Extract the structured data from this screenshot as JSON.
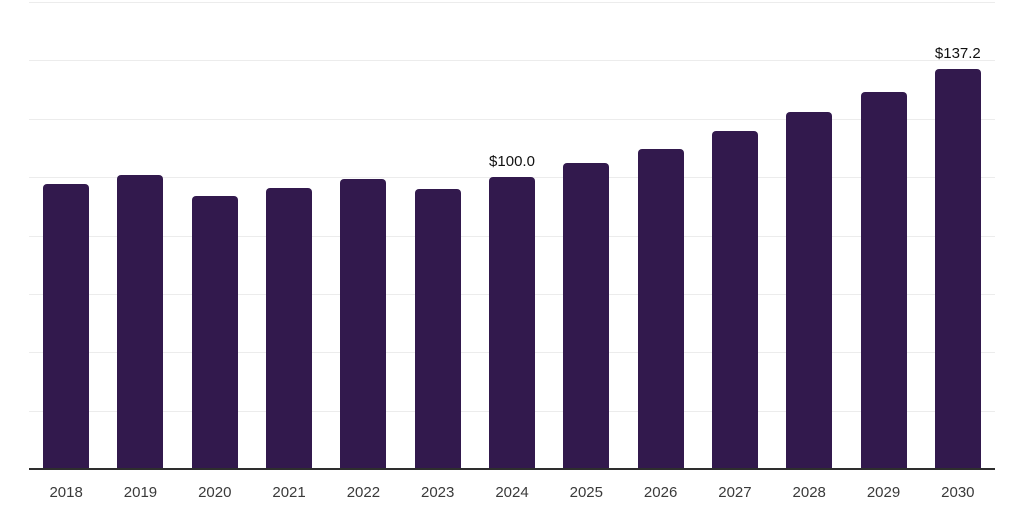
{
  "chart_data": {
    "type": "bar",
    "title": "",
    "xlabel": "",
    "ylabel": "",
    "categories": [
      "2018",
      "2019",
      "2020",
      "2021",
      "2022",
      "2023",
      "2024",
      "2025",
      "2026",
      "2027",
      "2028",
      "2029",
      "2030"
    ],
    "values": [
      97.8,
      100.7,
      93.4,
      96.2,
      99.5,
      95.9,
      100.0,
      104.8,
      109.6,
      115.7,
      122.2,
      129.2,
      137.2
    ],
    "data_labels": [
      "",
      "",
      "",
      "",
      "",
      "",
      "$100.0",
      "",
      "",
      "",
      "",
      "",
      "$137.2"
    ],
    "ylim": [
      0,
      160
    ],
    "ytick_step": 20,
    "y_tick_labels_shown": false,
    "grid": "horizontal",
    "legend": "none"
  },
  "colors": {
    "bar": "#32194d",
    "gridline": "#ececec",
    "axis_line": "#2e2e2e",
    "tick_label": "#3a3a3a",
    "value_label": "#111111",
    "background": "#ffffff"
  }
}
